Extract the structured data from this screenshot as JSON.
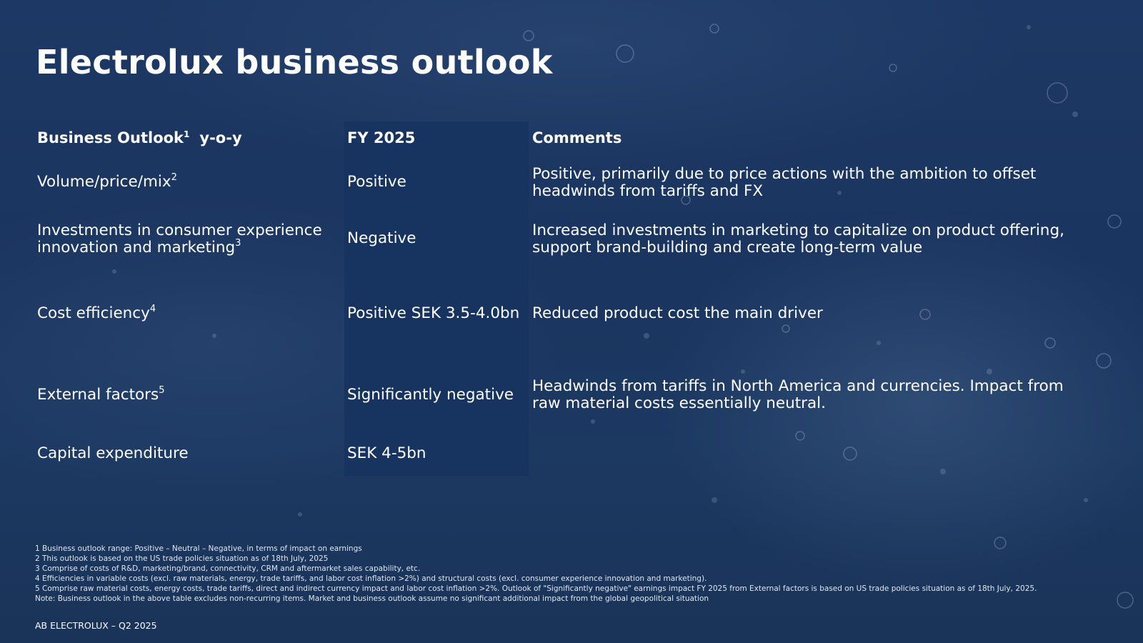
{
  "slide": {
    "title": "Electrolux business outlook",
    "table": {
      "headers": {
        "outlook": "Business Outlook",
        "outlook_sup": "1",
        "outlook_suffix": "y-o-y",
        "fy": "FY 2025",
        "comments": "Comments"
      },
      "rows": [
        {
          "label": "Volume/price/mix",
          "label_sup": "2",
          "fy": "Positive",
          "comment_lines": [
            "Positive, primarily due to price actions with the ambition to offset",
            "headwinds from tariffs and FX"
          ]
        },
        {
          "label_lines": [
            "Investments in consumer experience",
            "innovation and marketing"
          ],
          "label_sup": "3",
          "fy": "Negative",
          "comment_lines": [
            "Increased investments in marketing to capitalize on product offering,",
            "support brand-building and create long-term value"
          ]
        },
        {
          "label": "Cost efficiency",
          "label_sup": "4",
          "fy": "Positive SEK 3.5-4.0bn",
          "comment": "Reduced product cost the main driver"
        },
        {
          "label": "External factors",
          "label_sup": "5",
          "fy": "Significantly negative",
          "comment_lines": [
            "Headwinds from tariffs in North America and currencies. Impact from",
            "raw material costs essentially neutral."
          ]
        },
        {
          "label": "Capital expenditure",
          "fy": "SEK 4-5bn"
        }
      ]
    },
    "footnotes": [
      "1 Business outlook range: Positive – Neutral – Negative, in terms of impact on earnings",
      "2 This outlook is based on the US trade policies situation as of 18th July, 2025",
      "3 Comprise of costs of R&D, marketing/brand, connectivity, CRM and aftermarket sales capability, etc.",
      "4 Efficiencies in variable costs (excl. raw materials, energy, trade tariffs, and labor cost inflation >2%) and structural costs (excl. consumer experience innovation and marketing).",
      "5 Comprise raw material costs, energy costs, trade tariffs, direct and indirect currency impact and labor cost inflation >2%. Outlook of \"Significantly negative\" earnings impact FY 2025 from External factors is based on US trade policies situation as of 18th July, 2025.",
      "Note: Business outlook in the above table excludes non-recurring items. Market and business outlook assume no significant additional impact from the global geopolitical situation"
    ],
    "footer": "AB ELECTROLUX – Q2 2025"
  }
}
